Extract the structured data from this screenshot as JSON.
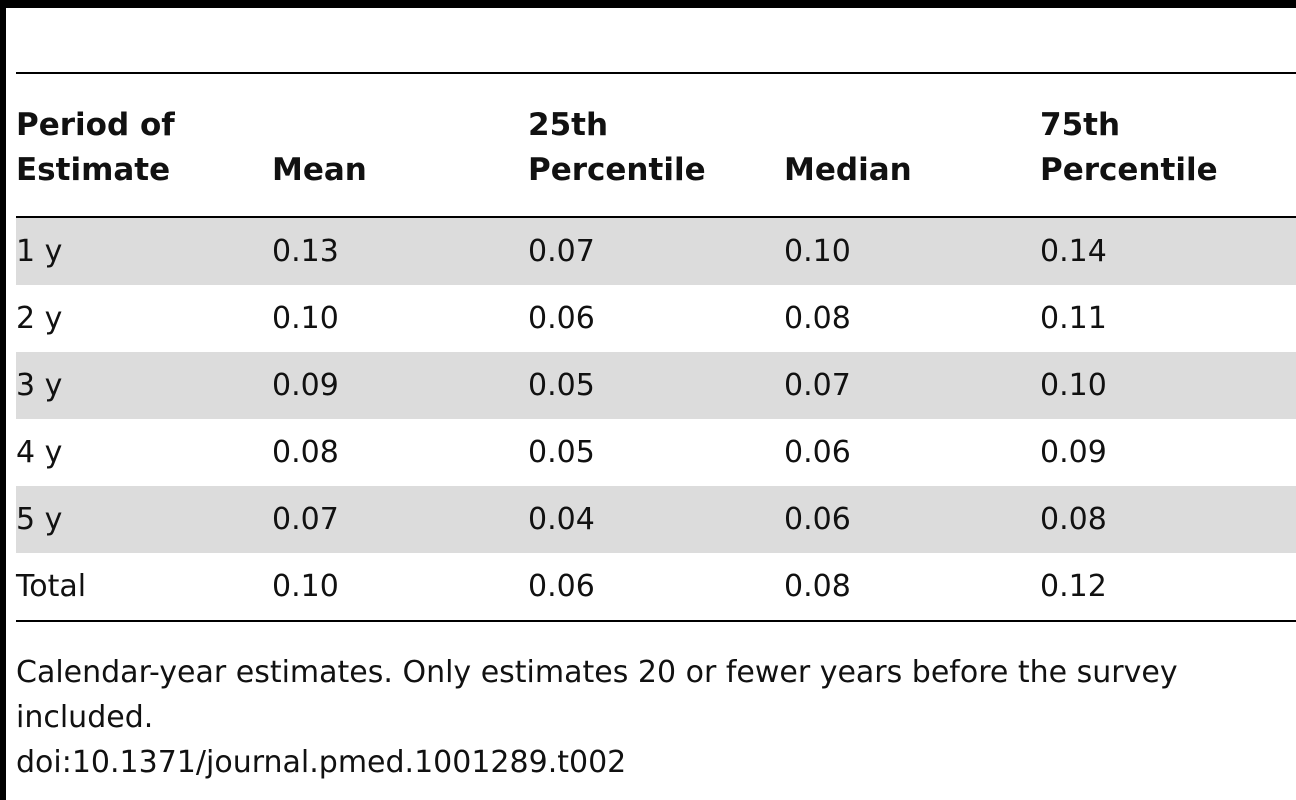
{
  "table": {
    "columns": [
      {
        "line1": "Period of",
        "line2": "Estimate"
      },
      {
        "line1": "",
        "line2": "Mean"
      },
      {
        "line1": "25th",
        "line2": "Percentile"
      },
      {
        "line1": "",
        "line2": "Median"
      },
      {
        "line1": "75th",
        "line2": "Percentile"
      }
    ],
    "rows": [
      {
        "period": "1 y",
        "mean": "0.13",
        "p25": "0.07",
        "median": "0.10",
        "p75": "0.14"
      },
      {
        "period": "2 y",
        "mean": "0.10",
        "p25": "0.06",
        "median": "0.08",
        "p75": "0.11"
      },
      {
        "period": "3 y",
        "mean": "0.09",
        "p25": "0.05",
        "median": "0.07",
        "p75": "0.10"
      },
      {
        "period": "4 y",
        "mean": "0.08",
        "p25": "0.05",
        "median": "0.06",
        "p75": "0.09"
      },
      {
        "period": "5 y",
        "mean": "0.07",
        "p25": "0.04",
        "median": "0.06",
        "p75": "0.08"
      },
      {
        "period": "Total",
        "mean": "0.10",
        "p25": "0.06",
        "median": "0.08",
        "p75": "0.12"
      }
    ]
  },
  "footnote": {
    "note": "Calendar-year estimates. Only estimates 20 or fewer years before the survey included.",
    "doi": "doi:10.1371/journal.pmed.1001289.t002"
  },
  "colors": {
    "shaded_row": "#dcdcdc",
    "rule": "#000000"
  }
}
